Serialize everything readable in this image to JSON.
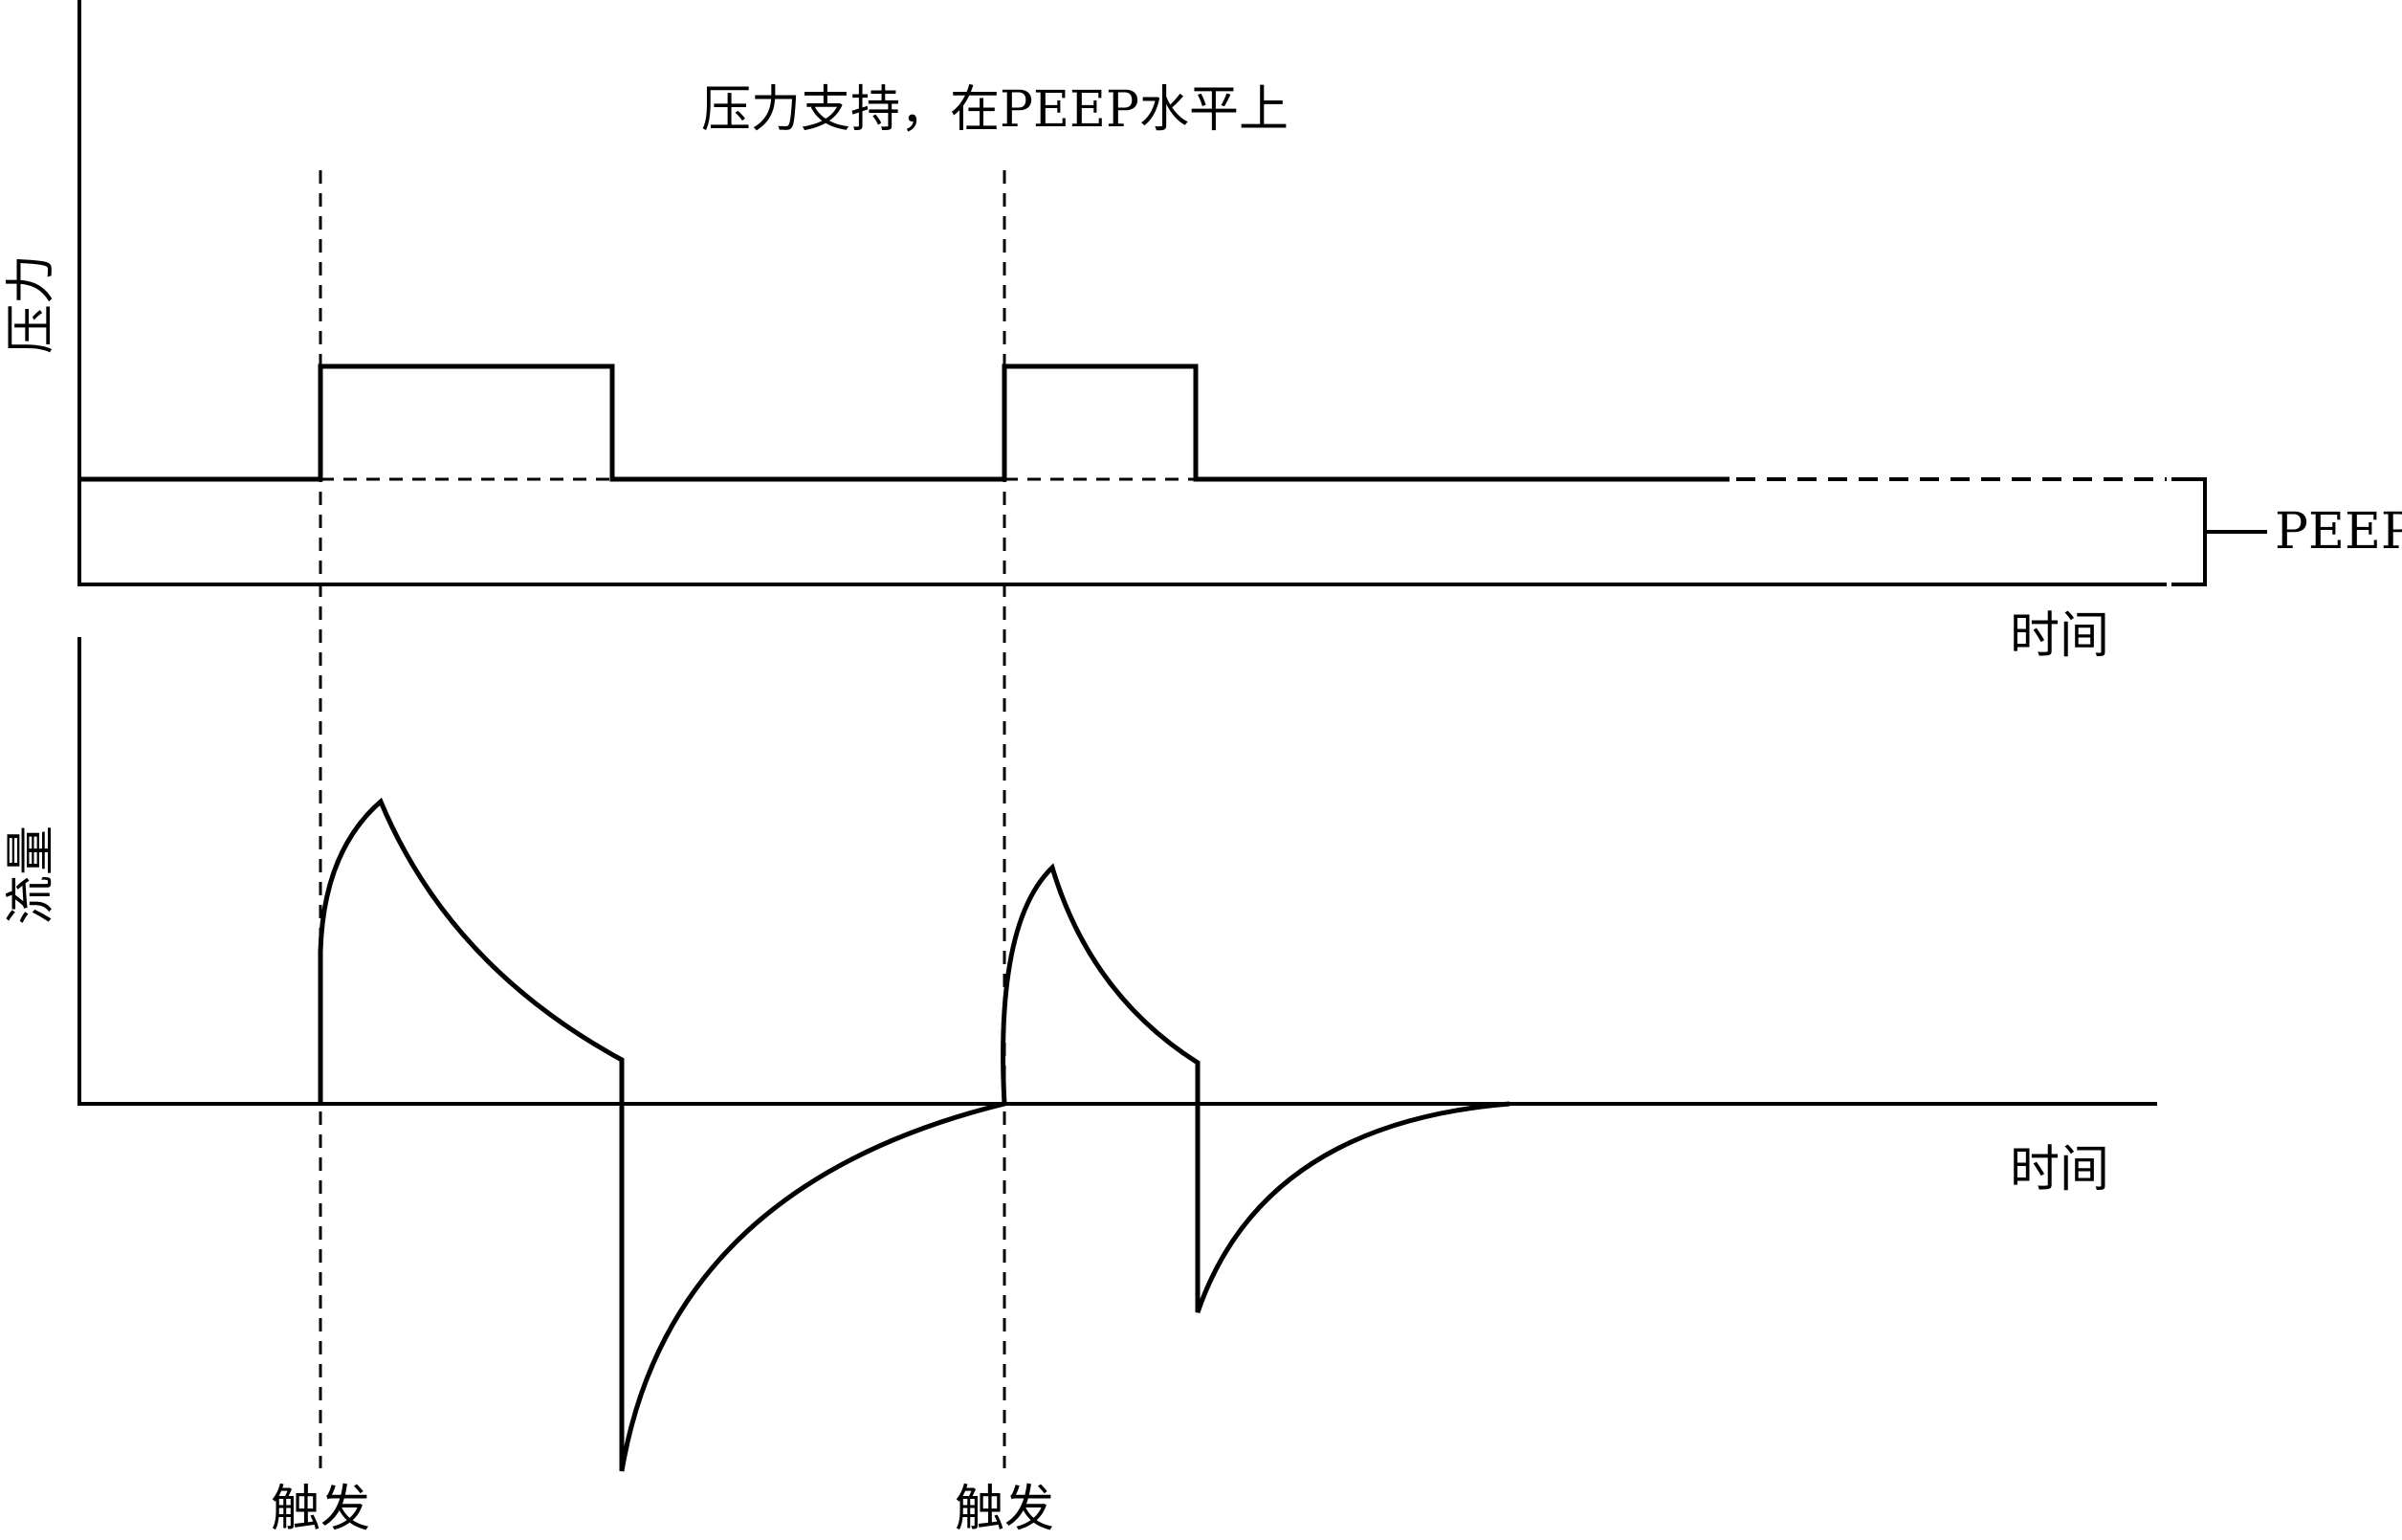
{
  "title": "压力支持，在PEEP水平上",
  "pressure_panel": {
    "y_label": "压力",
    "x_label": "时间",
    "peep_label": "PEEP"
  },
  "flow_panel": {
    "y_label": "流量",
    "x_label": "时间"
  },
  "trigger_labels": [
    "触发",
    "触发"
  ]
}
